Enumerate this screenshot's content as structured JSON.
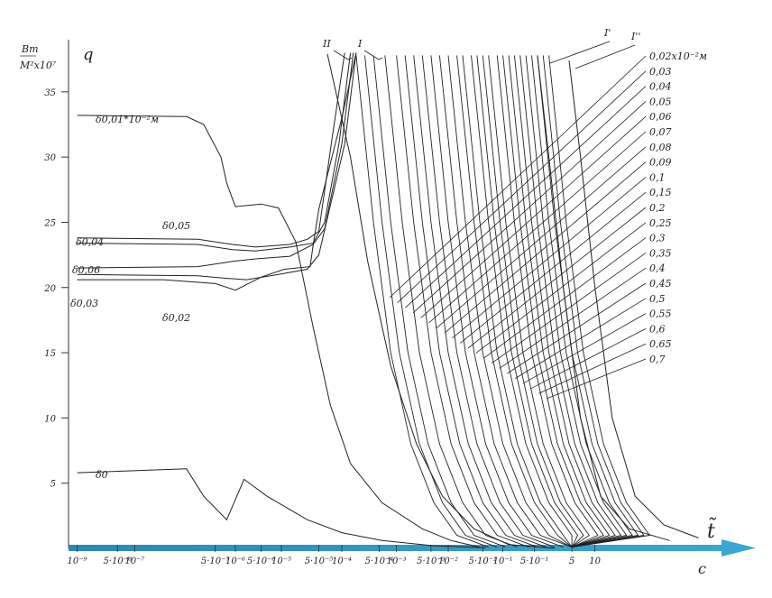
{
  "chart_data": {
    "type": "line",
    "ylabel_unit": "Вт/М²x10⁷",
    "ylabel_symbol": "q",
    "xlabel_symbol": "t̃",
    "xlabel_unit": "c",
    "y_ticks": [
      {
        "v": 5,
        "label": "5"
      },
      {
        "v": 10,
        "label": "10"
      },
      {
        "v": 15,
        "label": "15"
      },
      {
        "v": 20,
        "label": "20"
      },
      {
        "v": 25,
        "label": "25"
      },
      {
        "v": 30,
        "label": "30"
      },
      {
        "v": 35,
        "label": "35"
      }
    ],
    "ylim": [
      0,
      39
    ],
    "x_ticks": [
      {
        "v": 0.0,
        "label": "10⁻⁹"
      },
      {
        "v": 0.7,
        "label": "5·10⁻⁸"
      },
      {
        "v": 1.0,
        "label": "10⁻⁷"
      },
      {
        "v": 2.4,
        "label": "5·10⁻⁷"
      },
      {
        "v": 2.75,
        "label": "10⁻⁶"
      },
      {
        "v": 3.2,
        "label": "5·10⁻⁶"
      },
      {
        "v": 3.55,
        "label": "10⁻⁵"
      },
      {
        "v": 4.2,
        "label": "5·10⁻⁵"
      },
      {
        "v": 4.6,
        "label": "10⁻⁴"
      },
      {
        "v": 5.25,
        "label": "5·10⁻⁴"
      },
      {
        "v": 5.55,
        "label": "10⁻³"
      },
      {
        "v": 6.15,
        "label": "5·10⁻³"
      },
      {
        "v": 6.45,
        "label": "10⁻²"
      },
      {
        "v": 7.05,
        "label": "5·10⁻²"
      },
      {
        "v": 7.4,
        "label": "10⁻¹"
      },
      {
        "v": 7.95,
        "label": "5·10⁻¹"
      },
      {
        "v": 8.6,
        "label": "5"
      },
      {
        "v": 9.0,
        "label": "10"
      }
    ],
    "xlim": [
      -0.15,
      11.2
    ],
    "series": [
      {
        "name": "δ0,01*10⁻²м",
        "points": [
          [
            0,
            33.2
          ],
          [
            1.9,
            33.1
          ],
          [
            2.2,
            32.5
          ],
          [
            2.5,
            30
          ],
          [
            2.6,
            28
          ],
          [
            2.75,
            26.2
          ],
          [
            3.2,
            26.4
          ],
          [
            3.5,
            26.1
          ],
          [
            3.8,
            23.5
          ],
          [
            4.1,
            17
          ],
          [
            4.4,
            11
          ],
          [
            4.75,
            6.5
          ],
          [
            5.3,
            3.5
          ],
          [
            6.0,
            1.5
          ],
          [
            6.5,
            0.6
          ],
          [
            7.0,
            0.1
          ]
        ]
      },
      {
        "name": "δ0,04",
        "points": [
          [
            0,
            23.8
          ],
          [
            2.1,
            23.7
          ],
          [
            2.7,
            23.3
          ],
          [
            3.1,
            23.1
          ],
          [
            3.7,
            23.3
          ],
          [
            4.0,
            23.7
          ],
          [
            4.2,
            24.3
          ],
          [
            4.45,
            32
          ],
          [
            4.65,
            38
          ]
        ]
      },
      {
        "name": "δ0,05",
        "points": [
          [
            0,
            23.4
          ],
          [
            2.1,
            23.3
          ],
          [
            2.7,
            22.9
          ],
          [
            3.1,
            22.8
          ],
          [
            3.7,
            23.1
          ],
          [
            4.1,
            23.4
          ],
          [
            4.3,
            25
          ],
          [
            4.55,
            31
          ],
          [
            4.75,
            38
          ]
        ]
      },
      {
        "name": "δ0,06",
        "points": [
          [
            0,
            21.5
          ],
          [
            2.1,
            21.6
          ],
          [
            2.7,
            22
          ],
          [
            3.1,
            22.2
          ],
          [
            3.7,
            22.4
          ],
          [
            4.1,
            23.3
          ],
          [
            4.3,
            24.5
          ],
          [
            4.6,
            31
          ],
          [
            4.8,
            38
          ]
        ]
      },
      {
        "name": "δ0,03",
        "points": [
          [
            0,
            21
          ],
          [
            2.1,
            20.9
          ],
          [
            2.6,
            20.7
          ],
          [
            2.95,
            20.6
          ],
          [
            3.5,
            21
          ],
          [
            4.0,
            21.4
          ],
          [
            4.2,
            22.5
          ],
          [
            4.65,
            31
          ],
          [
            4.85,
            38
          ]
        ]
      },
      {
        "name": "δ0,02",
        "points": [
          [
            0,
            20.6
          ],
          [
            1.5,
            20.6
          ],
          [
            2.4,
            20.3
          ],
          [
            2.75,
            19.8
          ],
          [
            3.2,
            20.8
          ],
          [
            3.6,
            21.4
          ],
          [
            4.05,
            21.6
          ],
          [
            4.1,
            23.2
          ],
          [
            4.2,
            26
          ],
          [
            4.6,
            33
          ],
          [
            4.85,
            38
          ]
        ]
      },
      {
        "name": "δ0",
        "points": [
          [
            0,
            5.8
          ],
          [
            1.9,
            6.1
          ],
          [
            2.2,
            4
          ],
          [
            2.6,
            2.2
          ],
          [
            2.9,
            5.3
          ],
          [
            3.3,
            4
          ],
          [
            4.0,
            2.2
          ],
          [
            4.6,
            1.2
          ],
          [
            5.3,
            0.6
          ],
          [
            6.2,
            0.2
          ],
          [
            7.1,
            0.05
          ]
        ]
      },
      {
        "name": "II",
        "points": [
          [
            4.35,
            37.9
          ],
          [
            4.75,
            30
          ],
          [
            5.05,
            22
          ],
          [
            5.45,
            14
          ],
          [
            5.9,
            8
          ],
          [
            6.35,
            4
          ],
          [
            6.9,
            1.5
          ],
          [
            7.5,
            0.3
          ],
          [
            8.3,
            0.02
          ]
        ]
      }
    ],
    "steep_curves": {
      "top_x": [
        4.85,
        5.0,
        5.15,
        5.35,
        5.55,
        5.7,
        5.85,
        6.0,
        6.15,
        6.3,
        6.45,
        6.6,
        6.7,
        6.85,
        6.95,
        7.05,
        7.15,
        7.3,
        7.4,
        7.5,
        7.6,
        7.7,
        7.8,
        7.9,
        8.0,
        8.1,
        8.2
      ],
      "top_y": 37.8,
      "drop_x": 1.9,
      "tail_x": 8.6
    },
    "right_curves": [
      {
        "name": "I'",
        "points": [
          [
            8.0,
            37.8
          ],
          [
            8.2,
            30
          ],
          [
            8.45,
            20
          ],
          [
            8.75,
            10
          ],
          [
            9.1,
            4
          ],
          [
            9.6,
            1.5
          ],
          [
            10.3,
            0.6
          ]
        ]
      },
      {
        "name": "I''",
        "points": [
          [
            8.55,
            37.4
          ],
          [
            8.75,
            30
          ],
          [
            9.0,
            20
          ],
          [
            9.3,
            10
          ],
          [
            9.7,
            4
          ],
          [
            10.2,
            1.8
          ],
          [
            10.8,
            0.8
          ]
        ]
      }
    ],
    "curve_labels_right": [
      "0,02x10⁻²м",
      "0,03",
      "0,04",
      "0,05",
      "0,06",
      "0,07",
      "0,08",
      "0,09",
      "0,1",
      "0,15",
      "0,2",
      "0,25",
      "0,3",
      "0,35",
      "0,4",
      "0,45",
      "0,5",
      "0,55",
      "0,6",
      "0,65",
      "0,7"
    ],
    "top_labels": [
      "II",
      "I",
      "I'",
      "I''"
    ],
    "inline_labels": {
      "d001": "δ0,01*10⁻²м",
      "d004": "δ0,04",
      "d005": "δ0,05",
      "d006": "δ0,06",
      "d003": "δ0,03",
      "d002": "δ0,02",
      "d0": "δ0"
    },
    "legend": "none",
    "grid": false
  }
}
